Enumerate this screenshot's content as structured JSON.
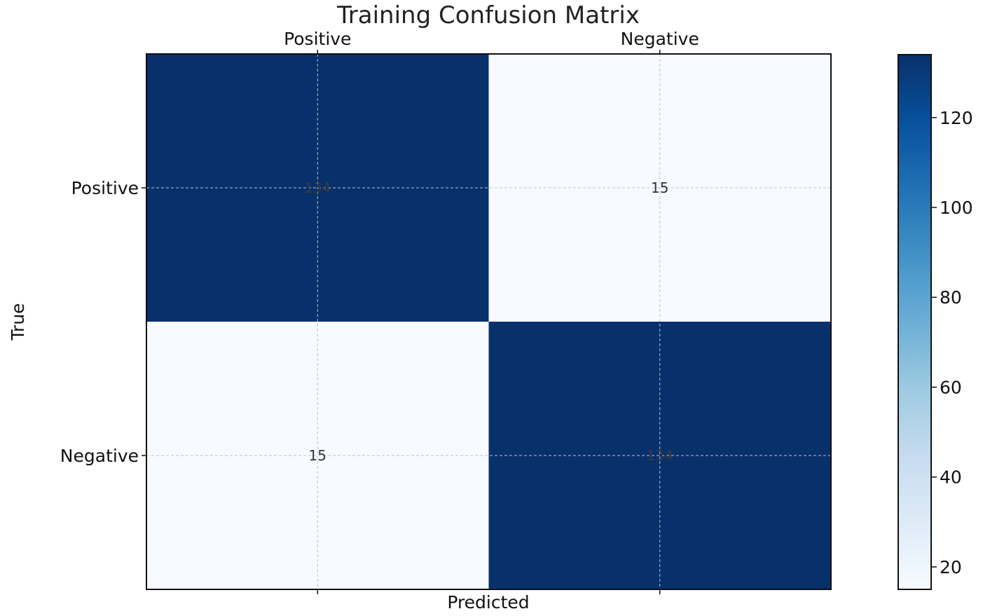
{
  "chart_data": {
    "type": "heatmap",
    "title": "Training Confusion Matrix",
    "xlabel": "Predicted",
    "ylabel": "True",
    "x_categories": [
      "Positive",
      "Negative"
    ],
    "y_categories": [
      "Positive",
      "Negative"
    ],
    "x_tick_position": "top",
    "values": [
      [
        134,
        15
      ],
      [
        15,
        134
      ]
    ],
    "cell_labels": [
      [
        "134",
        "15"
      ],
      [
        "15",
        "134"
      ]
    ],
    "colormap": "Blues",
    "color_low": "#f7fbff",
    "color_high": "#08306b",
    "colorbar": {
      "range": [
        15,
        134
      ],
      "ticks": [
        20,
        40,
        60,
        80,
        100,
        120
      ],
      "tick_labels": [
        "20",
        "40",
        "60",
        "80",
        "100",
        "120"
      ]
    },
    "grid": true
  }
}
